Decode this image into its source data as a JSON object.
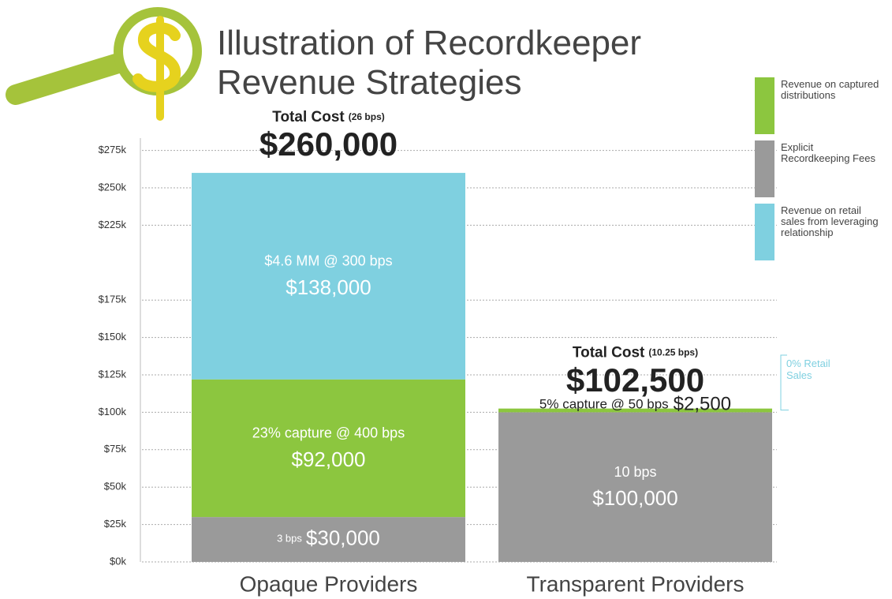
{
  "chart_data": {
    "type": "stacked_bar",
    "title": "Illustration of Recordkeeper Revenue Strategies",
    "categories": [
      "Opaque Providers",
      "Transparent Providers"
    ],
    "series": [
      {
        "name": "Explicit Recordkeeping Fees",
        "color": "#9a9a9a",
        "values": [
          30000,
          100000
        ],
        "value_labels": [
          "$30,000",
          "$100,000"
        ],
        "notes": [
          "3 bps",
          "10 bps"
        ]
      },
      {
        "name": "Revenue on captured distributions",
        "color": "#8cc63f",
        "values": [
          92000,
          2500
        ],
        "value_labels": [
          "$92,000",
          "$2,500"
        ],
        "notes": [
          "23% capture @ 400 bps",
          "5% capture @ 50 bps"
        ]
      },
      {
        "name": "Revenue on retail sales from leveraging relationship",
        "color": "#7fd0e0",
        "values": [
          138000,
          0
        ],
        "value_labels": [
          "$138,000",
          null
        ],
        "notes": [
          "$4.6 MM @ 300 bps",
          "0% Retail Sales"
        ]
      }
    ],
    "totals": [
      260000,
      102500
    ],
    "total_labels": [
      "$260,000",
      "$102,500"
    ],
    "total_captions": [
      "Total Cost",
      "Total Cost"
    ],
    "total_bps": [
      "(26 bps)",
      "(10.25 bps)"
    ],
    "ylim": [
      0,
      290000
    ],
    "yticks": [
      {
        "value": 0,
        "label": "$0k"
      },
      {
        "value": 25000,
        "label": "$25k"
      },
      {
        "value": 50000,
        "label": "$50k"
      },
      {
        "value": 75000,
        "label": "$75k"
      },
      {
        "value": 100000,
        "label": "$100k"
      },
      {
        "value": 125000,
        "label": "$125k"
      },
      {
        "value": 150000,
        "label": "$150k"
      },
      {
        "value": 175000,
        "label": "$175k"
      },
      {
        "value": 225000,
        "label": "$225k"
      },
      {
        "value": 250000,
        "label": "$250k"
      },
      {
        "value": 275000,
        "label": "$275k"
      }
    ],
    "grid": true
  }
}
